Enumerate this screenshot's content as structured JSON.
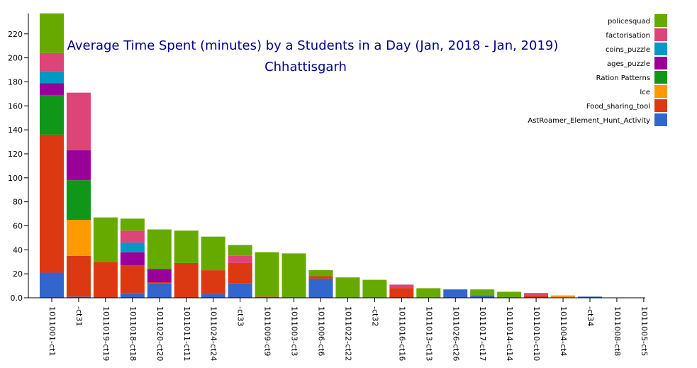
{
  "chart_data": {
    "type": "bar",
    "stacked": true,
    "title": "Average Time Spent (minutes) by a Students in a Day (Jan, 2018 - Jan, 2019)",
    "subtitle": "Chhattisgarh",
    "xlabel": "",
    "ylabel": "",
    "ylim": [
      0,
      237
    ],
    "yticks": [
      0,
      20,
      40,
      60,
      80,
      100,
      120,
      140,
      160,
      180,
      200,
      220
    ],
    "ytick_labels": [
      "0.0",
      "20",
      "40",
      "60",
      "80",
      "100",
      "120",
      "140",
      "160",
      "180",
      "200",
      "220"
    ],
    "grid": false,
    "legend_position": "top-right",
    "categories": [
      "1011001-ct1",
      "-ct31",
      "1011019-ct19",
      "1011018-ct18",
      "1011020-ct20",
      "1011011-ct11",
      "1011024-ct24",
      "-ct33",
      "1011009-ct9",
      "1011003-ct3",
      "1011006-ct6",
      "1011022-ct22",
      "-ct32",
      "1011016-ct16",
      "1011013-ct13",
      "1011026-ct26",
      "1011017-ct17",
      "1011014-ct14",
      "1011010-ct10",
      "1011004-ct4",
      "-ct34",
      "1011008-ct8",
      "1011005-ct5"
    ],
    "series": [
      {
        "name": "AstRoamer_Element_Hunt_Activity",
        "color": "#3366cc",
        "values": [
          21,
          1,
          0,
          4,
          12,
          0,
          3,
          12,
          0,
          0,
          16,
          0,
          0,
          0,
          0,
          7,
          2,
          0,
          0,
          0,
          1,
          0,
          0
        ]
      },
      {
        "name": "Food_sharing_tool",
        "color": "#dc3912",
        "values": [
          115,
          34,
          30,
          23,
          1,
          29,
          20,
          17,
          1,
          0,
          2,
          0,
          0,
          8,
          0,
          0,
          0,
          0,
          2,
          0,
          0,
          0,
          0
        ]
      },
      {
        "name": "Ice",
        "color": "#ff9900",
        "values": [
          0,
          30,
          0,
          0,
          0,
          0,
          0,
          0,
          0,
          0,
          0,
          0,
          0,
          0,
          0,
          0,
          0,
          0,
          0,
          2,
          0,
          0,
          0
        ]
      },
      {
        "name": "Ration Patterns",
        "color": "#109618",
        "values": [
          33,
          33,
          0,
          0,
          0,
          0,
          0,
          0,
          0,
          0,
          0,
          0,
          0,
          0,
          0,
          0,
          0,
          0,
          0,
          0,
          0,
          0,
          0
        ]
      },
      {
        "name": "ages_puzzle",
        "color": "#990099",
        "values": [
          10,
          25,
          0,
          11,
          11,
          0,
          0,
          0,
          0,
          0,
          0,
          0,
          0,
          0,
          0,
          0,
          0,
          0,
          0,
          0,
          0,
          0,
          0
        ]
      },
      {
        "name": "coins_puzzle",
        "color": "#0099c6",
        "values": [
          10,
          0,
          0,
          8,
          0,
          0,
          0,
          0,
          0,
          0,
          0,
          0,
          0,
          0,
          0,
          0,
          0,
          0,
          0,
          0,
          0,
          0,
          0
        ]
      },
      {
        "name": "factorisation",
        "color": "#dd4477",
        "values": [
          15,
          48,
          0,
          10,
          0,
          0,
          0,
          6,
          0,
          0,
          0,
          0,
          0,
          3,
          0,
          0,
          0,
          0,
          2,
          0,
          0,
          0,
          0
        ]
      },
      {
        "name": "policesquad",
        "color": "#66aa00",
        "values": [
          33,
          0,
          37,
          10,
          33,
          27,
          28,
          9,
          37,
          37,
          5,
          17,
          15,
          0,
          8,
          0,
          5,
          5,
          0,
          0,
          0,
          0,
          0
        ]
      }
    ]
  }
}
